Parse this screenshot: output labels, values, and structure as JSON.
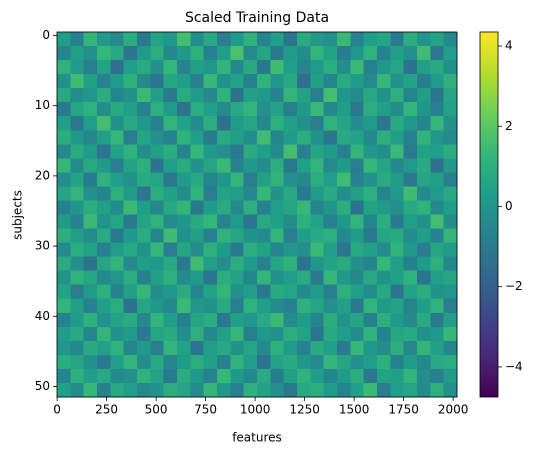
{
  "chart_data": {
    "type": "heatmap",
    "title": "Scaled Training Data",
    "x_label": "features",
    "y_label": "subjects",
    "colormap": "viridis",
    "xlim": [
      -0.5,
      2019.5
    ],
    "ylim": [
      51.5,
      -0.5
    ],
    "xticks": [
      0,
      250,
      500,
      750,
      1000,
      1250,
      1500,
      1750,
      2000
    ],
    "yticks": [
      0,
      10,
      20,
      30,
      40,
      50
    ],
    "clim": [
      -4.75,
      4.35
    ],
    "colorbar_ticks": [
      {
        "value": -4,
        "label": "−4"
      },
      {
        "value": -2,
        "label": "−2"
      },
      0,
      2,
      4
    ],
    "values": [
      [
        0.3,
        -0.8,
        1.2,
        0.1,
        -0.4,
        0.9,
        -1.1,
        0.5,
        0.0,
        1.6,
        -0.3,
        0.7,
        -0.9,
        0.2,
        1.1,
        -0.6,
        0.4,
        -1.3,
        0.8,
        0.1,
        -0.2,
        1.4,
        -0.7,
        0.3,
        0.6,
        -1.0,
        0.9,
        -0.1,
        0.5,
        -0.5
      ],
      [
        -0.6,
        0.4,
        -0.2,
        1.3,
        0.7,
        -1.2,
        0.2,
        0.9,
        -0.5,
        0.1,
        1.0,
        -0.8,
        0.3,
        1.7,
        -0.4,
        0.6,
        -1.0,
        0.2,
        -0.3,
        1.2,
        0.5,
        -0.9,
        0.0,
        1.1,
        -0.7,
        0.4,
        -0.2,
        1.5,
        -1.1,
        0.3
      ],
      [
        1.1,
        0.2,
        -0.9,
        0.5,
        -1.4,
        0.3,
        0.8,
        -0.2,
        1.3,
        -0.7,
        0.4,
        0.0,
        1.2,
        -0.5,
        0.7,
        -1.1,
        1.5,
        0.3,
        -0.6,
        0.2,
        0.9,
        -0.3,
        1.4,
        -0.8,
        0.1,
        0.6,
        -1.3,
        0.4,
        0.8,
        -0.2
      ],
      [
        -0.2,
        1.5,
        0.4,
        -0.7,
        0.2,
        1.0,
        -0.4,
        -1.2,
        0.6,
        0.3,
        -0.9,
        1.3,
        -0.1,
        0.5,
        -0.8,
        1.1,
        0.0,
        0.7,
        -1.5,
        0.4,
        -0.6,
        0.8,
        0.2,
        -0.4,
        1.3,
        -0.1,
        0.5,
        -0.9,
        0.2,
        1.0
      ],
      [
        0.7,
        -0.3,
        0.0,
        0.9,
        -0.6,
        -0.1,
        1.4,
        0.3,
        -1.0,
        0.8,
        0.2,
        -0.5,
        1.1,
        -1.3,
        0.4,
        0.1,
        -0.7,
        1.2,
        0.5,
        -0.9,
        1.6,
        0.0,
        -0.4,
        0.7,
        -0.2,
        1.0,
        -0.6,
        0.3,
        -1.2,
        0.6
      ],
      [
        -1.0,
        0.6,
        1.1,
        -0.3,
        0.8,
        0.4,
        -0.7,
        1.0,
        0.2,
        -1.3,
        0.9,
        0.3,
        -0.4,
        0.7,
        1.2,
        -0.2,
        0.5,
        -0.9,
        0.1,
        1.4,
        -0.5,
        0.3,
        -1.1,
        0.9,
        0.4,
        -0.3,
        1.2,
        0.0,
        -0.8,
        0.5
      ],
      [
        0.4,
        -1.1,
        0.3,
        1.6,
        -0.2,
        0.7,
        0.1,
        -0.8,
        1.2,
        0.5,
        -0.4,
        0.9,
        -1.4,
        0.2,
        0.6,
        -0.5,
        1.0,
        0.4,
        -0.2,
        -0.9,
        1.1,
        0.6,
        -0.3,
        0.2,
        -1.2,
        0.8,
        0.1,
        -0.6,
        1.3,
        -0.1
      ],
      [
        0.9,
        0.1,
        -0.5,
        0.4,
        1.3,
        -0.9,
        0.6,
        -0.2,
        -0.7,
        1.1,
        0.3,
        -1.0,
        0.8,
        0.4,
        -0.3,
        1.5,
        -0.6,
        0.2,
        0.9,
        -0.1,
        -1.2,
        0.7,
        0.5,
        -0.5,
        1.0,
        0.3,
        -0.8,
        1.1,
        0.0,
        -0.4
      ],
      [
        -0.5,
        0.8,
        0.2,
        -1.2,
        0.5,
        1.1,
        -0.3,
        0.4,
        0.9,
        -0.6,
        1.3,
        0.1,
        -0.2,
        -1.1,
        0.8,
        0.3,
        -0.4,
        1.6,
        -0.8,
        0.6,
        0.2,
        -0.7,
        1.2,
        0.0,
        -0.3,
        1.4,
        -1.0,
        0.5,
        0.3,
        0.9
      ],
      [
        1.3,
        -0.4,
        0.7,
        0.2,
        -0.9,
        0.5,
        1.0,
        -1.3,
        0.3,
        0.8,
        -0.1,
        0.6,
        1.4,
        -0.7,
        0.1,
        -0.3,
        0.9,
        -1.1,
        0.4,
        1.2,
        -0.4,
        0.2,
        -0.9,
        1.3,
        0.6,
        -0.5,
        0.2,
        0.8,
        -1.4,
        0.1
      ],
      [
        -0.3,
        0.5,
        -1.0,
        1.1,
        0.3,
        -0.2,
        0.8,
        0.6,
        -1.1,
        0.2,
        0.7,
        -0.6,
        0.0,
        1.2,
        -0.9,
        0.4,
        1.1,
        -0.2,
        -0.5,
        0.9,
        0.3,
        1.5,
        -0.7,
        -0.1,
        0.8,
        0.2,
        -1.1,
        0.6,
        0.4,
        -0.8
      ],
      [
        0.6,
        1.2,
        -0.2,
        -0.6,
        1.0,
        0.2,
        -1.2,
        0.9,
        0.4,
        -0.3,
        1.1,
        -0.9,
        0.5,
        0.3,
        -0.5,
        1.3,
        -0.1,
        0.7,
        -1.0,
        0.2,
        0.8,
        -0.3,
        0.4,
        1.0,
        -0.6,
        0.1,
        1.5,
        -0.4,
        0.2,
        0.7
      ],
      [
        -0.8,
        0.0,
        0.9,
        0.4,
        -0.3,
        1.4,
        0.3,
        -0.5,
        0.7,
        1.2,
        -1.1,
        0.2,
        0.8,
        -0.4,
        1.0,
        -0.8,
        0.3,
        0.6,
        1.3,
        -0.6,
        0.0,
        0.9,
        -1.3,
        0.5,
        0.2,
        -0.2,
        0.7,
        1.1,
        -0.5,
        0.3
      ],
      [
        0.2,
        -0.7,
        1.4,
        -0.1,
        0.6,
        -1.0,
        0.5,
        1.1,
        -0.4,
        0.0,
        0.8,
        1.3,
        -0.7,
        0.2,
        -1.2,
        0.7,
        0.4,
        -0.3,
        1.0,
        0.5,
        -0.8,
        0.1,
        1.2,
        -0.6,
        0.9,
        -1.0,
        0.3,
        -0.2,
        1.6,
        -0.3
      ],
      [
        1.0,
        0.3,
        -0.4,
        0.8,
        -1.1,
        0.1,
        0.9,
        -0.6,
        1.5,
        -0.2,
        0.4,
        -0.8,
        1.1,
        0.6,
        -0.1,
        -0.4,
        1.2,
        -0.9,
        0.3,
        0.7,
        1.0,
        -0.5,
        0.2,
        -1.1,
        0.6,
        0.8,
        -0.3,
        0.4,
        -0.7,
        1.2
      ],
      [
        -0.4,
        0.9,
        0.5,
        -0.8,
        0.3,
        0.7,
        -0.1,
        1.3,
        -0.9,
        0.6,
        -0.3,
        1.0,
        0.2,
        -1.0,
        0.9,
        0.5,
        -0.6,
        0.1,
        -0.2,
        1.4,
        0.3,
        -1.2,
        0.7,
        0.4,
        -0.4,
        1.1,
        0.0,
        -0.9,
        0.6,
        0.2
      ],
      [
        0.8,
        -0.2,
        -1.3,
        0.6,
        1.2,
        -0.4,
        0.3,
        0.1,
        0.7,
        -1.0,
        1.5,
        0.4,
        -0.3,
        0.9,
        0.2,
        -0.7,
        0.6,
        1.1,
        -1.3,
        0.0,
        0.5,
        0.8,
        -0.2,
        -0.6,
        1.3,
        0.3,
        -0.8,
        0.2,
        1.0,
        -0.5
      ],
      [
        -0.1,
        1.1,
        0.6,
        -0.5,
        0.0,
        0.9,
        -0.8,
        0.4,
        1.0,
        -0.4,
        0.2,
        -1.2,
        0.9,
        0.5,
        -0.6,
        1.2,
        -0.2,
        0.3,
        0.8,
        -1.0,
        1.3,
        0.1,
        -0.5,
        0.7,
        -0.1,
        0.4,
        1.1,
        -1.3,
        0.3,
        0.6
      ],
      [
        0.5,
        -0.9,
        0.2,
        1.0,
        -0.7,
        0.4,
        1.3,
        -0.3,
        0.1,
        0.8,
        -0.6,
        0.5,
        1.2,
        -0.2,
        0.3,
        -1.1,
        0.8,
        0.6,
        -0.4,
        0.2,
        -0.9,
        1.0,
        0.4,
        -0.3,
        0.7,
        -1.2,
        0.5,
        0.9,
        -0.1,
        0.0
      ],
      [
        1.2,
        0.4,
        -0.7,
        0.3,
        0.9,
        -1.3,
        0.6,
        0.0,
        -0.5,
        1.4,
        0.1,
        -0.2,
        0.7,
        -0.9,
        1.1,
        0.3,
        -0.4,
        -0.8,
        1.0,
        0.6,
        -0.2,
        0.4,
        -1.0,
        1.2,
        0.2,
        0.5,
        -0.6,
        0.3,
        1.1,
        -0.9
      ],
      [
        -0.7,
        0.2,
        1.0,
        -0.2,
        0.5,
        0.8,
        -0.5,
        1.2,
        0.3,
        -0.8,
        0.6,
        0.9,
        -1.1,
        0.4,
        0.0,
        0.7,
        1.4,
        -0.3,
        0.2,
        -0.6,
        0.9,
        -0.1,
        0.6,
        -0.8,
        1.0,
        0.2,
        -0.4,
        0.7,
        -1.0,
        0.4
      ],
      [
        0.3,
        0.7,
        -0.6,
        1.2,
        -0.1,
        0.2,
        -1.0,
        0.6,
        0.8,
        -0.3,
        1.0,
        -0.5,
        0.4,
        1.3,
        -0.8,
        0.1,
        -0.2,
        0.9,
        0.5,
        -1.2,
        0.7,
        0.3,
        -0.4,
        1.1,
        -0.7,
        0.6,
        0.8,
        -0.2,
        0.1,
        1.3
      ],
      [
        0.0,
        -0.5,
        0.8,
        0.4,
        1.1,
        -0.6,
        0.2,
        -0.9,
        1.2,
        0.5,
        -1.2,
        0.3,
        0.7,
        -0.1,
        0.6,
        -0.4,
        1.0,
        0.2,
        -0.7,
        0.8,
        0.4,
        -1.0,
        1.3,
        0.1,
        -0.3,
        0.9,
        -0.5,
        1.2,
        0.4,
        -0.6
      ],
      [
        0.9,
        0.6,
        -0.1,
        -1.0,
        0.4,
        1.2,
        -0.3,
        0.7,
        -0.6,
        0.2,
        0.9,
        0.4,
        -0.8,
        1.1,
        0.3,
        -1.3,
        0.5,
        0.8,
        0.0,
        -0.4,
        1.2,
        0.6,
        -0.2,
        0.3,
        1.0,
        -0.8,
        0.2,
        -0.5,
        0.7,
        0.9
      ],
      [
        -0.6,
        1.0,
        0.3,
        0.7,
        -0.4,
        -0.2,
        1.1,
        0.5,
        -1.0,
        0.9,
        0.1,
        -0.7,
        1.3,
        0.2,
        -0.5,
        0.8,
        -0.9,
        0.4,
        1.1,
        0.3,
        -0.6,
        0.2,
        0.9,
        -1.1,
        0.5,
        0.4,
        1.2,
        -0.3,
        -0.8,
        0.2
      ],
      [
        0.4,
        -0.3,
        1.3,
        -0.8,
        0.7,
        0.3,
        -0.5,
        -0.1,
        0.9,
        0.6,
        -0.4,
        1.2,
        0.1,
        -0.9,
        1.0,
        0.5,
        -0.2,
        -1.1,
        0.7,
        0.9,
        0.2,
        -0.6,
        0.4,
        1.4,
        -0.9,
        0.3,
        0.6,
        -0.4,
        1.0,
        -0.2
      ]
    ]
  }
}
